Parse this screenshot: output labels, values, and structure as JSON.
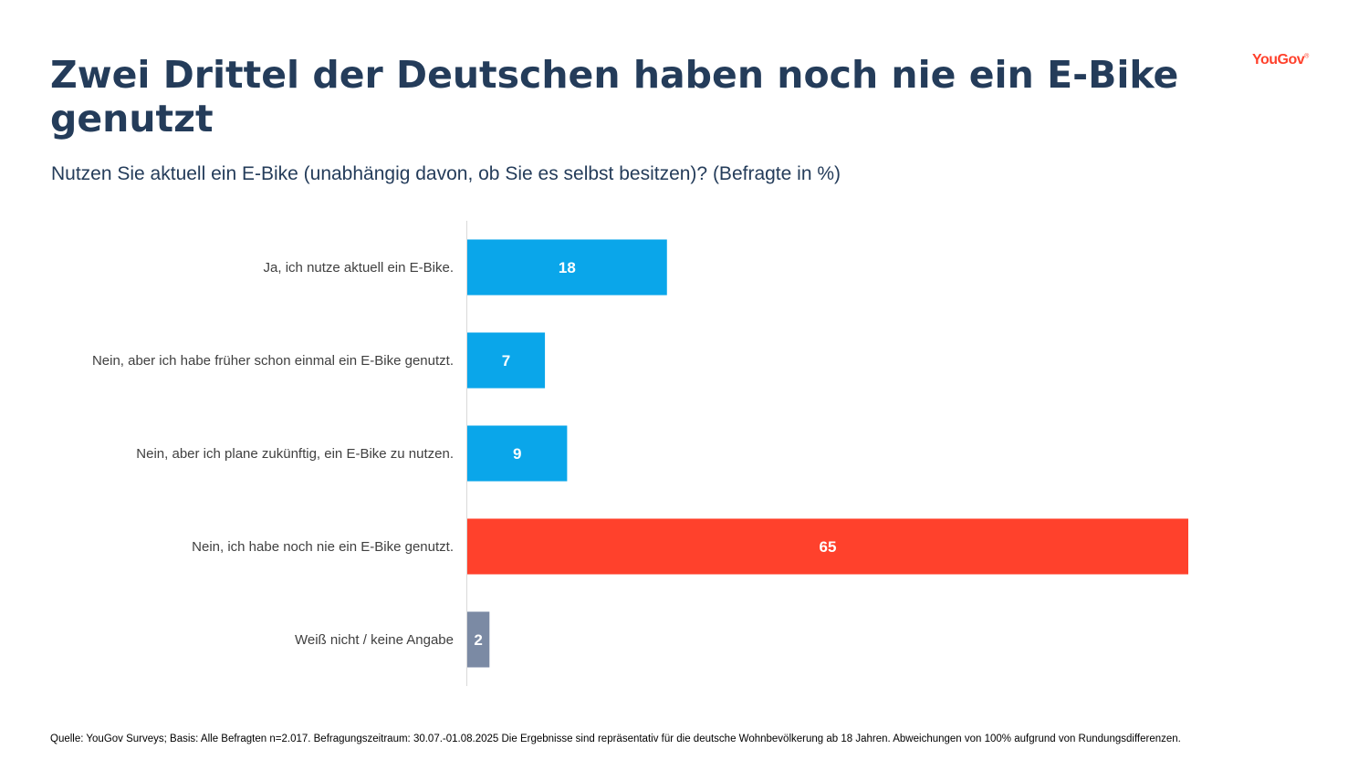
{
  "header": {
    "title": "Zwei Drittel der Deutschen haben noch nie ein E-Bike genutzt",
    "subtitle": "Nutzen Sie aktuell ein E-Bike (unabhängig davon, ob Sie es selbst besitzen)? (Befragte in %)",
    "logo_text": "YouGov",
    "logo_mark": "®"
  },
  "footer": {
    "source": "Quelle: YouGov Surveys; Basis: Alle Befragten n=2.017. Befragungszeitraum: 30.07.-01.08.2025 Die Ergebnisse sind repräsentativ für die deutsche Wohnbevölkerung ab 18 Jahren. Abweichungen von 100% aufgrund von Rundungsdifferenzen."
  },
  "colors": {
    "title": "#243c5a",
    "bar_blue": "#0aa6ea",
    "bar_red": "#ff412c",
    "bar_grey": "#7b8aa4",
    "axis": "#d9d9d9",
    "category_label": "#404040",
    "value_label": "#ffffff",
    "logo": "#ff412c"
  },
  "chart_data": {
    "type": "bar",
    "orientation": "horizontal",
    "categories": [
      "Ja, ich nutze aktuell ein E-Bike.",
      "Nein, aber ich habe früher schon einmal ein E-Bike genutzt.",
      "Nein, aber ich plane zukünftig, ein E-Bike zu nutzen.",
      "Nein, ich habe noch nie ein E-Bike genutzt.",
      "Weiß nicht / keine Angabe"
    ],
    "values": [
      18,
      7,
      9,
      65,
      2
    ],
    "bar_colors": [
      "#0aa6ea",
      "#0aa6ea",
      "#0aa6ea",
      "#ff412c",
      "#7b8aa4"
    ],
    "xlim": [
      0,
      65
    ],
    "grid": false,
    "legend": "none",
    "data_labels": true
  }
}
